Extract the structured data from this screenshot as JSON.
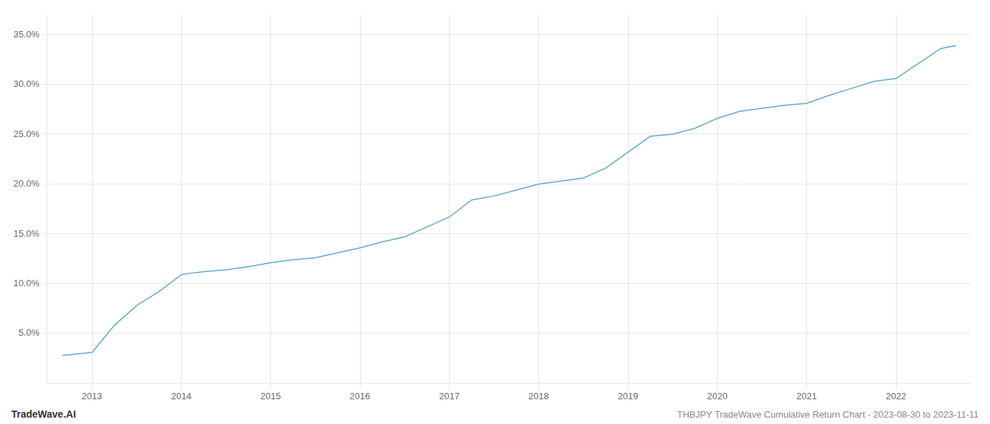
{
  "chart_data": {
    "type": "line",
    "title": "THBJPY TradeWave Cumulative Return Chart - 2023-08-30 to 2023-11-11",
    "annotations": [
      "TradeWave.AI"
    ],
    "x": [
      2012.67,
      2013.0,
      2013.25,
      2013.5,
      2013.75,
      2014.0,
      2014.1,
      2014.25,
      2014.5,
      2014.75,
      2015.0,
      2015.25,
      2015.5,
      2015.75,
      2016.0,
      2016.25,
      2016.5,
      2016.75,
      2017.0,
      2017.25,
      2017.5,
      2017.75,
      2018.0,
      2018.25,
      2018.5,
      2018.75,
      2019.0,
      2019.25,
      2019.5,
      2019.75,
      2020.0,
      2020.25,
      2020.5,
      2020.75,
      2021.0,
      2021.25,
      2021.5,
      2021.75,
      2022.0,
      2022.25,
      2022.5,
      2022.67
    ],
    "values": [
      2.8,
      3.1,
      5.8,
      7.8,
      9.2,
      10.9,
      11.05,
      11.2,
      11.4,
      11.7,
      12.1,
      12.4,
      12.6,
      13.1,
      13.6,
      14.2,
      14.7,
      15.7,
      16.7,
      18.4,
      18.8,
      19.4,
      20.0,
      20.3,
      20.6,
      21.6,
      23.2,
      24.8,
      25.0,
      25.6,
      26.6,
      27.3,
      27.6,
      27.9,
      28.1,
      28.9,
      29.6,
      30.3,
      30.6,
      32.1,
      33.6,
      33.9
    ],
    "color": "#5ba8d4",
    "xlim": [
      2012.5,
      2022.83
    ],
    "ylim": [
      0,
      37
    ],
    "xticks": [
      2013,
      2014,
      2015,
      2016,
      2017,
      2018,
      2019,
      2020,
      2021,
      2022
    ],
    "yticks": [
      {
        "value": 5.0,
        "label": "5.0%"
      },
      {
        "value": 10.0,
        "label": "10.0%"
      },
      {
        "value": 15.0,
        "label": "15.0%"
      },
      {
        "value": 20.0,
        "label": "20.0%"
      },
      {
        "value": 25.0,
        "label": "25.0%"
      },
      {
        "value": 30.0,
        "label": "30.0%"
      },
      {
        "value": 35.0,
        "label": "35.0%"
      }
    ],
    "grid": true
  }
}
